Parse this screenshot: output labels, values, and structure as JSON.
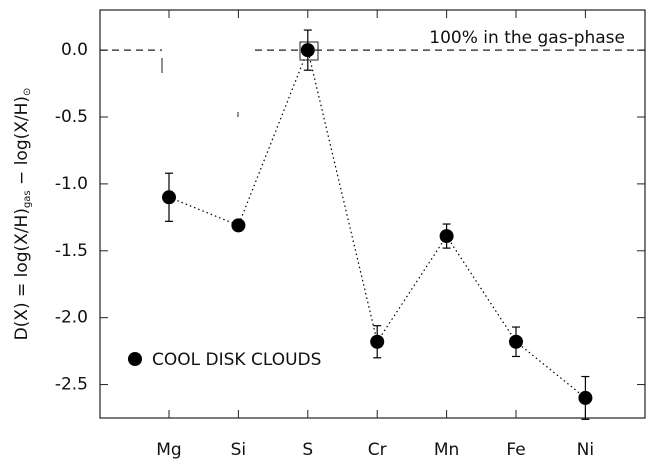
{
  "chart_data": {
    "type": "errorbar-line",
    "ylabel": [
      "D(X) = log(X/H)",
      "gas",
      " − log(X/H)",
      "⊙"
    ],
    "annotation": "100% in the gas-phase",
    "reference_line": 0,
    "categories": [
      "Mg",
      "Si",
      "S",
      "Cr",
      "Mn",
      "Fe",
      "Ni"
    ],
    "series": [
      {
        "name": "COOL DISK CLOUDS",
        "color": "#000000",
        "values": [
          -1.1,
          -1.31,
          0.0,
          -2.18,
          -1.39,
          -2.18,
          -2.6
        ],
        "errors": [
          0.18,
          0.02,
          0.15,
          0.12,
          0.09,
          0.11,
          0.16
        ]
      }
    ],
    "ylim": [
      -2.75,
      0.3
    ],
    "yticks": [
      {
        "value": 0,
        "label": "0.0"
      },
      -0.5,
      {
        "value": -1,
        "label": "-1.0"
      },
      -1.5,
      {
        "value": -2,
        "label": "-2.0"
      },
      -2.5
    ],
    "legend": "lower left"
  }
}
